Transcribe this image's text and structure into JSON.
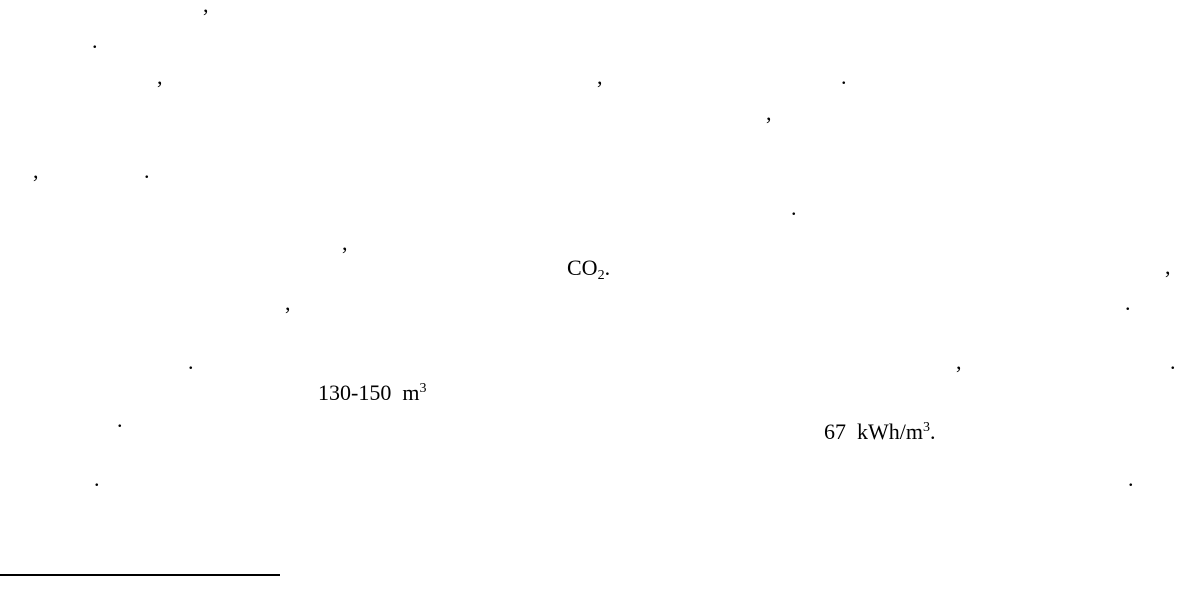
{
  "document": {
    "marks": {
      "comma": ",",
      "period": "."
    },
    "co2": {
      "base": "CO",
      "subscript": "2",
      "trailing": "."
    },
    "volume": {
      "range": "130-150",
      "unit": "m",
      "superscript": "3"
    },
    "energy": {
      "value": "67",
      "unit": "kWh/m",
      "superscript": "3",
      "trailing": "."
    }
  }
}
